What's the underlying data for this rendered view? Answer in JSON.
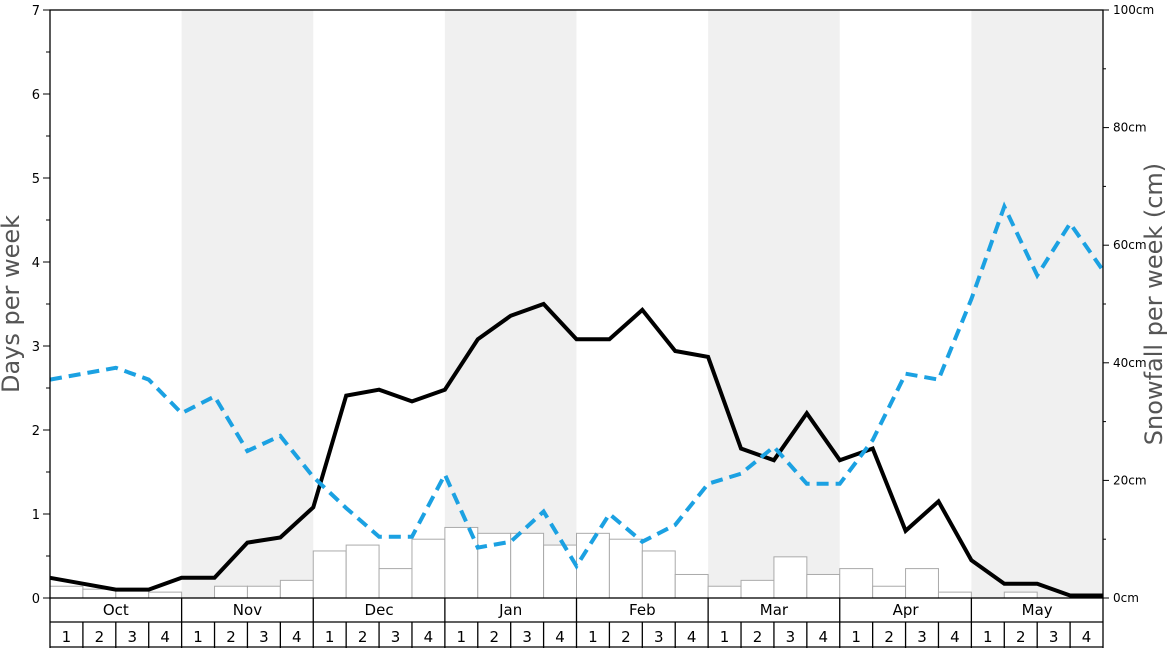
{
  "chart_data": {
    "type": "bar+line",
    "title": "",
    "ylabel_left": "Days per week",
    "ylabel_right": "Snowfall per week (cm)",
    "ylim_left": [
      0,
      7
    ],
    "yticks_left": [
      "0",
      "1",
      "2",
      "3",
      "4",
      "5",
      "6",
      "7"
    ],
    "ylim_right": [
      0,
      100
    ],
    "yticks_right": [
      "0cm",
      "20cm",
      "40cm",
      "60cm",
      "80cm",
      "100cm"
    ],
    "months": [
      "Oct",
      "Nov",
      "Dec",
      "Jan",
      "Feb",
      "Mar",
      "Apr",
      "May"
    ],
    "weeks": [
      "1",
      "2",
      "3",
      "4"
    ],
    "shaded_months": [
      "Nov",
      "Jan",
      "Mar",
      "May"
    ],
    "grid": false,
    "snowfall_bars_cm": [
      2,
      1.5,
      1.5,
      1,
      0,
      2,
      2,
      3,
      8,
      9,
      5,
      10,
      12,
      11,
      11,
      9,
      11,
      10,
      8,
      4,
      2,
      3,
      7,
      4,
      5,
      2,
      5,
      1,
      0,
      1,
      0,
      0
    ],
    "series": [
      {
        "name": "",
        "axis": "left",
        "style": "solid",
        "color": "#000000",
        "values": [
          0.24,
          0.17,
          0.1,
          0.1,
          0.24,
          0.24,
          0.66,
          0.72,
          1.08,
          2.41,
          2.48,
          2.34,
          2.48,
          3.08,
          3.36,
          3.5,
          3.08,
          3.08,
          3.43,
          2.94,
          2.87,
          1.78,
          1.64,
          2.2,
          1.64,
          1.78,
          0.8,
          1.15,
          0.45,
          0.17,
          0.17,
          0.03,
          0.03
        ]
      },
      {
        "name": "",
        "axis": "left",
        "style": "dashed",
        "color": "#1ba1e2",
        "values": [
          2.6,
          2.67,
          2.74,
          2.6,
          2.2,
          2.4,
          1.75,
          1.93,
          1.44,
          1.07,
          0.73,
          0.73,
          1.47,
          0.6,
          0.67,
          1.03,
          0.38,
          1.0,
          0.67,
          0.87,
          1.36,
          1.48,
          1.8,
          1.36,
          1.36,
          1.88,
          2.67,
          2.6,
          3.56,
          4.66,
          3.84,
          4.46,
          3.9
        ]
      }
    ]
  }
}
